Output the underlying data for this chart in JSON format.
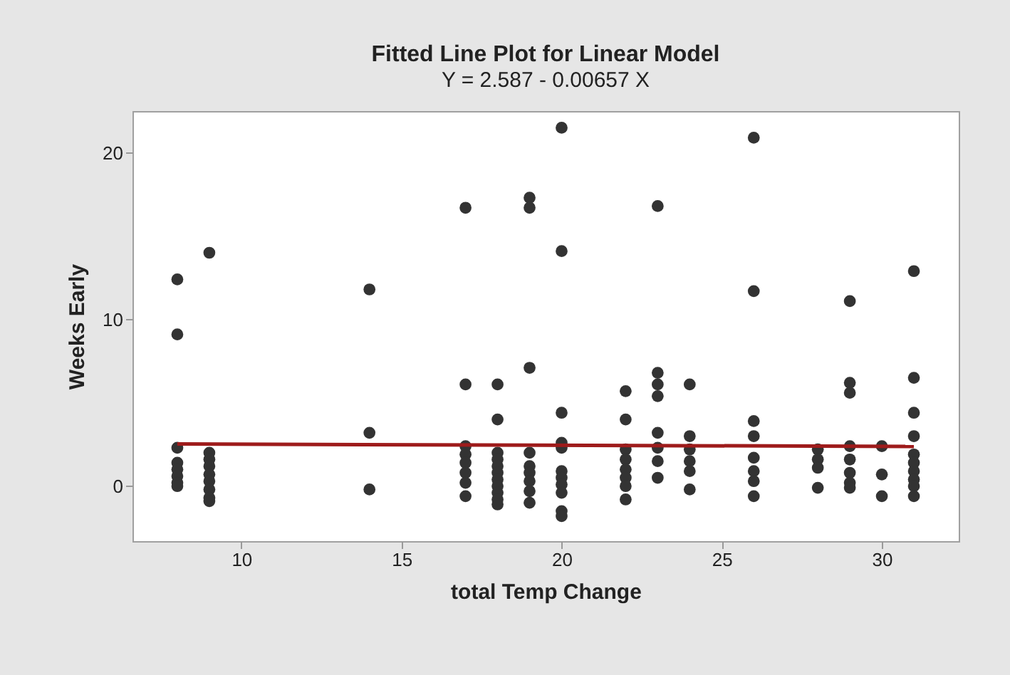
{
  "chart_data": {
    "type": "scatter",
    "title": "Fitted Line Plot for Linear Model",
    "subtitle": "Y = 2.587 - 0.00657 X",
    "xlabel": "total Temp Change",
    "ylabel": "Weeks Early",
    "xlim": [
      6.6,
      32.4
    ],
    "ylim": [
      -3.3,
      22.5
    ],
    "xticks": [
      10,
      15,
      20,
      25,
      30
    ],
    "yticks": [
      0,
      10,
      20
    ],
    "grid": false,
    "series": [
      {
        "color": "#333333",
        "marker": "circle",
        "x": [
          8,
          8,
          8,
          8,
          8,
          8,
          8,
          8,
          9,
          9,
          9,
          9,
          9,
          9,
          9,
          9,
          9,
          14,
          14,
          14,
          17,
          17,
          17,
          17,
          17,
          17,
          17,
          17,
          18,
          18,
          18,
          18,
          18,
          18,
          18,
          18,
          18,
          18,
          18,
          19,
          19,
          19,
          19,
          19,
          19,
          19,
          19,
          19,
          20,
          20,
          20,
          20,
          20,
          20,
          20,
          20,
          20,
          20,
          20,
          22,
          22,
          22,
          22,
          22,
          22,
          22,
          22,
          23,
          23,
          23,
          23,
          23,
          23,
          23,
          23,
          24,
          24,
          24,
          24,
          24,
          24,
          26,
          26,
          26,
          26,
          26,
          26,
          26,
          26,
          28,
          28,
          28,
          28,
          29,
          29,
          29,
          29,
          29,
          29,
          29,
          29,
          30,
          30,
          30,
          31,
          31,
          31,
          31,
          31,
          31,
          31,
          31,
          31,
          31
        ],
        "values": [
          12.4,
          9.1,
          2.3,
          1.4,
          1.0,
          0.6,
          0.2,
          0.0,
          14.0,
          2.0,
          1.6,
          1.2,
          0.7,
          0.3,
          -0.2,
          -0.7,
          -0.9,
          11.8,
          3.2,
          -0.2,
          16.7,
          6.1,
          2.4,
          1.9,
          1.4,
          0.8,
          0.2,
          -0.6,
          6.1,
          4.0,
          2.0,
          1.6,
          1.2,
          0.8,
          0.4,
          0.0,
          -0.4,
          -0.8,
          -1.1,
          17.3,
          16.7,
          7.1,
          2.0,
          1.2,
          0.8,
          0.3,
          -0.3,
          -1.0,
          21.5,
          14.1,
          4.4,
          2.6,
          2.3,
          0.9,
          0.5,
          0.1,
          -0.4,
          -1.5,
          -1.8,
          5.7,
          4.0,
          2.2,
          1.6,
          1.0,
          0.5,
          0.0,
          -0.8,
          16.8,
          6.8,
          6.1,
          5.4,
          3.2,
          2.3,
          1.5,
          0.5,
          6.1,
          3.0,
          2.2,
          1.5,
          0.9,
          -0.2,
          20.9,
          11.7,
          3.9,
          3.0,
          1.7,
          0.9,
          0.3,
          -0.6,
          2.2,
          1.6,
          1.1,
          -0.1,
          11.1,
          6.2,
          5.6,
          2.4,
          1.6,
          0.8,
          0.2,
          -0.1,
          2.4,
          0.7,
          -0.6,
          12.9,
          6.5,
          4.4,
          3.0,
          1.9,
          1.4,
          0.9,
          0.4,
          0.0,
          -0.6
        ]
      },
      {
        "type": "line",
        "color": "#9e1b1b",
        "x": [
          8,
          31
        ],
        "values": [
          2.53,
          2.38
        ]
      }
    ]
  }
}
